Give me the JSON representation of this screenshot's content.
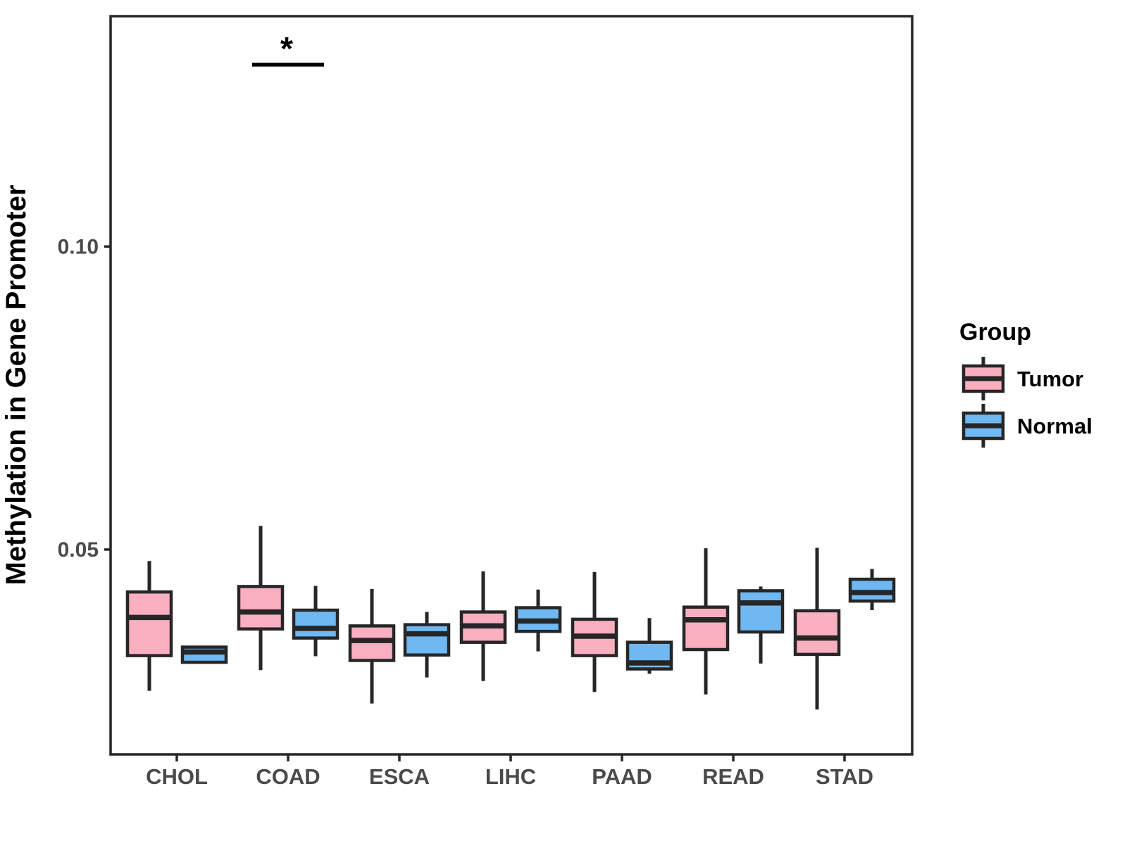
{
  "figure": {
    "background": "#ffffff"
  },
  "chart_data": {
    "type": "boxplot",
    "title": "",
    "xlabel": "",
    "ylabel": "Methylation in Gene Promoter",
    "categories": [
      "CHOL",
      "COAD",
      "ESCA",
      "LIHC",
      "PAAD",
      "READ",
      "STAD"
    ],
    "ylim": [
      0.0162,
      0.138
    ],
    "yticks": [
      {
        "value": 0.05,
        "label": "0.05"
      },
      {
        "value": 0.1,
        "label": "0.10"
      }
    ],
    "grid": "off",
    "panel_border": true,
    "stroke_color": "#262626",
    "tick_text_color": "#4a4a4a",
    "series": [
      {
        "name": "Tumor",
        "color": "#F9AFBF",
        "boxes": [
          {
            "category": "CHOL",
            "low": 0.0267,
            "q1": 0.0325,
            "median": 0.0388,
            "q3": 0.043,
            "high": 0.0481
          },
          {
            "category": "COAD",
            "low": 0.0301,
            "q1": 0.0369,
            "median": 0.0397,
            "q3": 0.0439,
            "high": 0.0539
          },
          {
            "category": "ESCA",
            "low": 0.0246,
            "q1": 0.0317,
            "median": 0.035,
            "q3": 0.0374,
            "high": 0.0435
          },
          {
            "category": "LIHC",
            "low": 0.0283,
            "q1": 0.0347,
            "median": 0.0374,
            "q3": 0.0397,
            "high": 0.0464
          },
          {
            "category": "PAAD",
            "low": 0.0265,
            "q1": 0.0325,
            "median": 0.0357,
            "q3": 0.0385,
            "high": 0.0463
          },
          {
            "category": "READ",
            "low": 0.0261,
            "q1": 0.0335,
            "median": 0.0384,
            "q3": 0.0405,
            "high": 0.0502
          },
          {
            "category": "STAD",
            "low": 0.0236,
            "q1": 0.0327,
            "median": 0.0354,
            "q3": 0.0399,
            "high": 0.0503
          }
        ]
      },
      {
        "name": "Normal",
        "color": "#6FB8F2",
        "boxes": [
          {
            "category": "CHOL",
            "low": 0.0312,
            "q1": 0.0314,
            "median": 0.0331,
            "q3": 0.0339,
            "high": 0.034
          },
          {
            "category": "COAD",
            "low": 0.0324,
            "q1": 0.0354,
            "median": 0.037,
            "q3": 0.04,
            "high": 0.044
          },
          {
            "category": "ESCA",
            "low": 0.0289,
            "q1": 0.0326,
            "median": 0.0361,
            "q3": 0.0376,
            "high": 0.0397
          },
          {
            "category": "LIHC",
            "low": 0.0332,
            "q1": 0.0365,
            "median": 0.0382,
            "q3": 0.0404,
            "high": 0.0434
          },
          {
            "category": "PAAD",
            "low": 0.0295,
            "q1": 0.0303,
            "median": 0.0313,
            "q3": 0.0347,
            "high": 0.0387
          },
          {
            "category": "READ",
            "low": 0.0312,
            "q1": 0.0364,
            "median": 0.0412,
            "q3": 0.0432,
            "high": 0.0439
          },
          {
            "category": "STAD",
            "low": 0.04,
            "q1": 0.0415,
            "median": 0.0429,
            "q3": 0.0451,
            "high": 0.0468
          }
        ]
      }
    ],
    "legend": {
      "title": "Group",
      "position": "right",
      "entries": [
        {
          "label": "Tumor",
          "color": "#F9AFBF"
        },
        {
          "label": "Normal",
          "color": "#6FB8F2"
        }
      ]
    },
    "annotations": [
      {
        "type": "significance",
        "category": "COAD",
        "label": "*",
        "bar_value": 0.13
      }
    ]
  }
}
